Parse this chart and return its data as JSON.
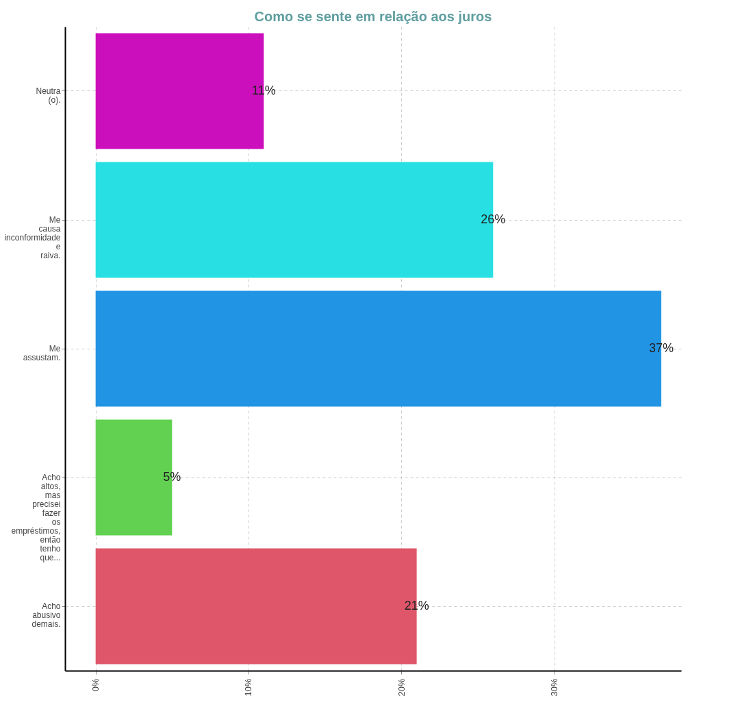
{
  "chart_data": {
    "type": "bar",
    "orientation": "horizontal",
    "title": "Como se sente em relação aos juros",
    "categories": [
      "Neutra (o).",
      "Me causa inconformidade e raiva.",
      "Me assustam.",
      "Acho altos, mas precisei fazer os empréstimos, então tenho que...",
      "Acho abusivo demais."
    ],
    "values": [
      11,
      26,
      37,
      5,
      21
    ],
    "value_labels": [
      "11%",
      "26%",
      "37%",
      "5%",
      "21%"
    ],
    "colors": [
      "#cc0fbc",
      "#28e0e3",
      "#2294e4",
      "#62d152",
      "#df566a"
    ],
    "xlim": [
      -2,
      38.3
    ],
    "xticks": [
      {
        "value": 0,
        "label": "0%"
      },
      {
        "value": 10,
        "label": "10%"
      },
      {
        "value": 20,
        "label": "20%"
      },
      {
        "value": 30,
        "label": "30%"
      }
    ],
    "grid": true
  }
}
